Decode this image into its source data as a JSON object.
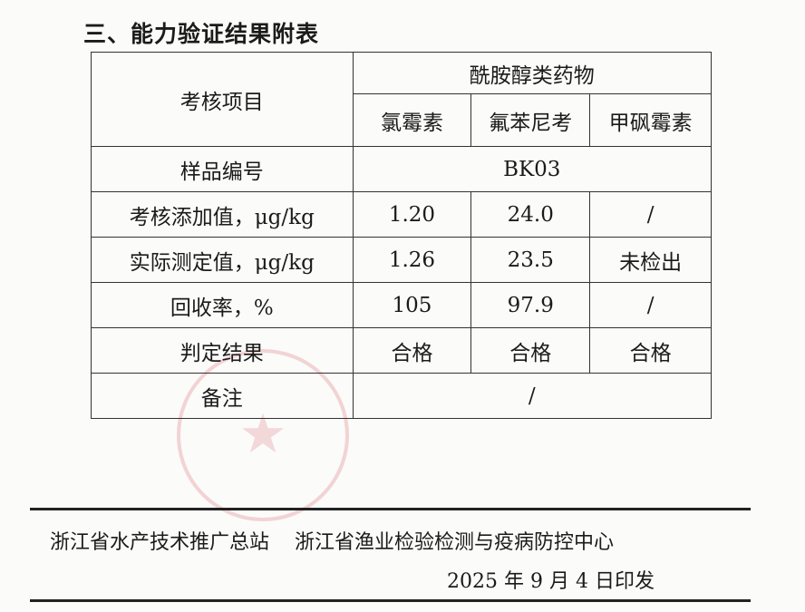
{
  "title": "三、能力验证结果附表",
  "table": {
    "item_header": "考核项目",
    "group_header": "酰胺醇类药物",
    "drugs": [
      "氯霉素",
      "氟苯尼考",
      "甲砜霉素"
    ],
    "sample_label": "样品编号",
    "sample_id": "BK03",
    "rows": [
      {
        "label": "考核添加值，μg/kg",
        "values": [
          "1.20",
          "24.0",
          "/"
        ]
      },
      {
        "label": "实际测定值，μg/kg",
        "values": [
          "1.26",
          "23.5",
          "未检出"
        ]
      },
      {
        "label": "回收率，%",
        "values": [
          "105",
          "97.9",
          "/"
        ]
      },
      {
        "label": "判定结果",
        "values": [
          "合格",
          "合格",
          "合格"
        ]
      }
    ],
    "remark_label": "备注",
    "remark_value": "/"
  },
  "footer": {
    "org1": "浙江省水产技术推广总站",
    "org2": "浙江省渔业检验检测与疫病防控中心",
    "date": "2025 年 9 月 4 日印发"
  },
  "stamp_color": "#d75a64"
}
